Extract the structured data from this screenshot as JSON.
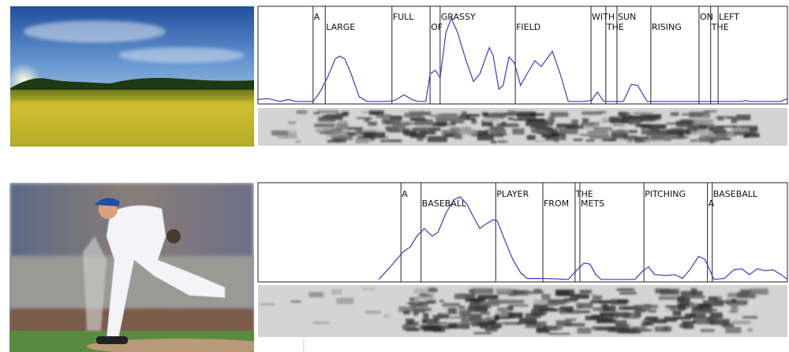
{
  "chart_data": [
    {
      "type": "line",
      "color": "#3a3ac8",
      "xlim": [
        0,
        100
      ],
      "ylim": [
        0,
        1
      ],
      "words": [
        "A",
        "LARGE",
        "FULL",
        "OF",
        "GRASSY",
        "FIELD",
        "WITH",
        "THE",
        "SUN",
        "RISING",
        "ON",
        "THE",
        "LEFT"
      ],
      "boundaries": [
        10.4,
        12.7,
        25.3,
        32.5,
        34.4,
        48.6,
        62.9,
        65.7,
        67.8,
        74.2,
        83.3,
        85.5,
        86.9
      ],
      "x": [
        0,
        1.9,
        4.2,
        5.7,
        7.2,
        10.4,
        11.6,
        13.1,
        14.6,
        15.4,
        16.4,
        17.6,
        19.1,
        20.6,
        24.3,
        25.8,
        27.6,
        29.1,
        30.3,
        31.7,
        32.5,
        33.5,
        34.4,
        35.5,
        36.5,
        37.7,
        39.2,
        40.7,
        41.9,
        43.7,
        44.4,
        45.5,
        46.3,
        47.4,
        48.4,
        49.6,
        50.8,
        52.3,
        53.5,
        55.6,
        57.1,
        58.6,
        61.5,
        63,
        64.1,
        65.3,
        69,
        70.5,
        71.7,
        73.5,
        91.4,
        92.1,
        92.8,
        98.8,
        100
      ],
      "values": [
        0.03,
        0.04,
        0.01,
        0.03,
        0.01,
        0.01,
        0.1,
        0.26,
        0.46,
        0.49,
        0.46,
        0.3,
        0.06,
        0.01,
        0.01,
        0.02,
        0.08,
        0.03,
        0.01,
        0.01,
        0.3,
        0.34,
        0.26,
        0.74,
        0.89,
        0.74,
        0.46,
        0.22,
        0.3,
        0.58,
        0.5,
        0.14,
        0.18,
        0.48,
        0.42,
        0.18,
        0.3,
        0.44,
        0.38,
        0.54,
        0.3,
        0.01,
        0.01,
        0.02,
        0.11,
        0.01,
        0.01,
        0.19,
        0.18,
        0.01,
        0.01,
        0.02,
        0.01,
        0.01,
        0.04
      ]
    },
    {
      "type": "line",
      "color": "#3a3ac8",
      "xlim": [
        0,
        100
      ],
      "ylim": [
        0,
        1
      ],
      "words": [
        "A",
        "BASEBALL",
        "PLAYER",
        "FROM",
        "THE",
        "METS",
        "PITCHING",
        "A",
        "BASEBALL"
      ],
      "boundaries": [
        27,
        30.8,
        44.9,
        53.8,
        59.9,
        60.8,
        72.9,
        84.9,
        85.8
      ],
      "x": [
        22.8,
        25,
        27.3,
        28.8,
        30,
        31.4,
        32.9,
        34,
        35.5,
        37,
        38.2,
        39.5,
        40.7,
        41.9,
        42.9,
        44.4,
        45.2,
        46.6,
        48.1,
        49.6,
        50.8,
        54.1,
        58.6,
        60.1,
        61.6,
        62.7,
        63.8,
        64.8,
        71.2,
        72.7,
        73.8,
        74.9,
        77.2,
        78.7,
        80.2,
        81.7,
        83.2,
        84.4,
        85.4,
        86.1,
        88.1,
        89.9,
        91.4,
        92.8,
        94.3,
        95.8,
        97.3,
        98.8,
        100
      ],
      "values": [
        0.01,
        0.14,
        0.29,
        0.35,
        0.46,
        0.54,
        0.46,
        0.5,
        0.7,
        0.84,
        0.87,
        0.79,
        0.66,
        0.54,
        0.58,
        0.63,
        0.62,
        0.42,
        0.22,
        0.08,
        0.02,
        0.02,
        0.01,
        0.1,
        0.18,
        0.17,
        0.06,
        0.01,
        0.01,
        0.1,
        0.14,
        0.06,
        0.05,
        0.06,
        0.02,
        0.12,
        0.25,
        0.22,
        0.1,
        0.01,
        0.02,
        0.11,
        0.12,
        0.06,
        0.12,
        0.1,
        0.11,
        0.06,
        0.01
      ]
    }
  ]
}
